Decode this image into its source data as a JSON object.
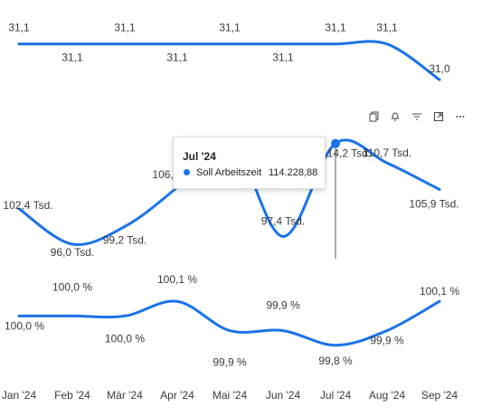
{
  "chart_data": [
    {
      "type": "line",
      "categories": [
        "Jan '24",
        "Feb '24",
        "Mär '24",
        "Apr '24",
        "Mai '24",
        "Jun '24",
        "Jul '24",
        "Aug '24",
        "Sep '24"
      ],
      "series": [
        {
          "values": [
            31.1,
            31.1,
            31.1,
            31.1,
            31.1,
            31.1,
            31.1,
            31.1,
            31.0
          ]
        }
      ],
      "labels": [
        "31,1",
        "31,1",
        "31,1",
        "31,1",
        "31,1",
        "31,1",
        "31,1",
        "31,1",
        "31,0"
      ],
      "color": "#1a73e8"
    },
    {
      "type": "line",
      "categories": [
        "Jan '24",
        "Feb '24",
        "Mär '24",
        "Apr '24",
        "Mai '24",
        "Jun '24",
        "Jul '24",
        "Aug '24",
        "Sep '24"
      ],
      "series": [
        {
          "name": "Soll Arbeitszeit",
          "values": [
            102400,
            96000,
            99200,
            106300,
            115000,
            97400,
            114228.88,
            110700,
            105900
          ]
        }
      ],
      "labels": [
        "102,4 Tsd.",
        "96,0 Tsd.",
        "99,2 Tsd.",
        "106,3 Tsd.",
        "",
        "97,4 Tsd.",
        "114,2 Tsd.",
        "110,7 Tsd.",
        "105,9 Tsd."
      ],
      "color": "#1a73e8"
    },
    {
      "type": "line",
      "categories": [
        "Jan '24",
        "Feb '24",
        "Mär '24",
        "Apr '24",
        "Mai '24",
        "Jun '24",
        "Jul '24",
        "Aug '24",
        "Sep '24"
      ],
      "series": [
        {
          "values": [
            100.0,
            100.0,
            100.0,
            100.1,
            99.9,
            99.9,
            99.8,
            99.9,
            100.1
          ]
        }
      ],
      "labels": [
        "100,0 %",
        "100,0 %",
        "100,0 %",
        "100,1 %",
        "99,9 %",
        "99,9 %",
        "99,8 %",
        "99,9 %",
        "100,1 %"
      ],
      "color": "#1a73e8"
    }
  ],
  "x_axis": {
    "tick_labels": [
      "Jan '24",
      "Feb '24",
      "Mär '24",
      "Apr '24",
      "Mai '24",
      "Jun '24",
      "Jul '24",
      "Aug '24",
      "Sep '24"
    ]
  },
  "toolbar": {
    "icons": [
      "copy-icon",
      "pin-icon",
      "filter-icon",
      "focus-mode-icon",
      "more-options-icon"
    ]
  },
  "tooltip": {
    "title": "Jul '24",
    "series_name": "Soll Arbeitszeit",
    "value": "114.228,88",
    "color": "#1a73e8"
  }
}
